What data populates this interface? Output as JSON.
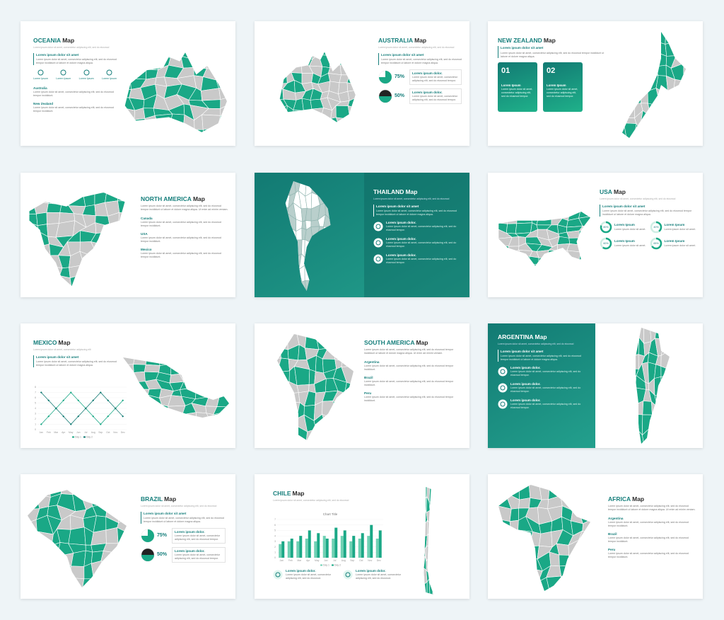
{
  "slides": [
    {
      "title": "OCEANIA",
      "suffix": "Map",
      "subtitle": "Lorem ipsum dolor sit amet, consectetur adipiscing elit, sed do eiusmod",
      "heading": "Lorem ipsum dolor sit amet",
      "body": "Lorem ipsum dolor sit amet, consectetur adipiscing elit, sed do eiusmod tempor incididunt ut labore et dolore magna aliqua.",
      "icons": [
        "Lorem Ipsum",
        "Lorem Ipsum",
        "Lorem Ipsum",
        "Lorem Ipsum"
      ],
      "items": [
        {
          "label": "Australia",
          "text": "Lorem ipsum dolor sit amet, consectetur adipiscing elit, sed do eiusmod tempor incididunt."
        },
        {
          "label": "New Zealand",
          "text": "Lorem ipsum dolor sit amet, consectetur adipiscing elit, sed do eiusmod tempor incididunt."
        }
      ]
    },
    {
      "title": "AUSTRALIA",
      "suffix": "Map",
      "subtitle": "Lorem ipsum dolor sit amet, consectetur adipiscing elit, sed do eiusmod",
      "heading": "Lorem ipsum dolor sit amet",
      "body": "Lorem ipsum dolor sit amet, consectetur adipiscing elit, sed do eiusmod tempor incididunt ut labore et dolore magna aliqua.",
      "pies": {
        "values": [
          75,
          50
        ],
        "value_labels": [
          "75%",
          "50%"
        ],
        "titles": [
          "Lorem ipsum dolor.",
          "Lorem ipsum dolor."
        ],
        "texts": [
          "Lorem ipsum dolor sit amet, consectetur adipiscing elit, sed do eiusmod tempor.",
          "Lorem ipsum dolor sit amet, consectetur adipiscing elit, sed do eiusmod tempor."
        ]
      }
    },
    {
      "title": "NEW ZEALAND",
      "suffix": "Map",
      "heading": "Lorem ipsum dolor sit amet",
      "body": "Lorem ipsum dolor sit amet, consectetur adipiscing elit, sed do eiusmod tempor incididunt ut labore et dolore magna aliqua.",
      "boxes": [
        {
          "num": "01",
          "title": "Lorem Ipsum",
          "text": "Lorem ipsum dolor sit amet, consectetur adipiscing elit, sed do eiusmod tempor."
        },
        {
          "num": "02",
          "title": "Lorem Ipsum",
          "text": "Lorem ipsum dolor sit amet, consectetur adipiscing elit, sed do eiusmod tempor."
        }
      ]
    },
    {
      "title": "NORTH AMERICA",
      "suffix": "Map",
      "body": "Lorem ipsum dolor sit amet, consectetur adipiscing elit, sed do eiusmod tempor incididunt ut labore et dolore magna aliqua. Ut enim ad minim veniam.",
      "items": [
        {
          "label": "Canada",
          "text": "Lorem ipsum dolor sit amet, consectetur adipiscing elit, sed do eiusmod tempor incididunt."
        },
        {
          "label": "USA",
          "text": "Lorem ipsum dolor sit amet, consectetur adipiscing elit, sed do eiusmod tempor incididunt."
        },
        {
          "label": "Mexico",
          "text": "Lorem ipsum dolor sit amet, consectetur adipiscing elit, sed do eiusmod tempor incididunt."
        }
      ]
    },
    {
      "title": "THAILAND",
      "suffix": "Map",
      "subtitle": "Lorem ipsum dolor sit amet, consectetur adipiscing elit, sed do eiusmod",
      "heading": "Lorem ipsum dolor sit amet",
      "body": "Lorem ipsum dolor sit amet, consectetur adipiscing elit, sed do eiusmod tempor incididunt ut labore et dolore magna aliqua.",
      "features": [
        {
          "title": "Lorem ipsum dolor.",
          "text": "Lorem ipsum dolor sit amet, consectetur adipiscing elit, sed do eiusmod tempor."
        },
        {
          "title": "Lorem ipsum dolor.",
          "text": "Lorem ipsum dolor sit amet, consectetur adipiscing elit, sed do eiusmod tempor."
        },
        {
          "title": "Lorem ipsum dolor.",
          "text": "Lorem ipsum dolor sit amet, consectetur adipiscing elit, sed do eiusmod tempor."
        }
      ]
    },
    {
      "title": "USA",
      "suffix": "Map",
      "subtitle": "Lorem ipsum dolor sit amet, consectetur adipiscing elit, sed do eiusmod",
      "heading": "Lorem ipsum dolor sit amet",
      "body": "Lorem ipsum dolor sit amet, consectetur adipiscing elit, sed do eiusmod tempor incididunt ut labore et dolore magna aliqua.",
      "donuts": {
        "values": [
          80,
          40,
          60,
          65
        ],
        "value_labels": [
          "80%",
          "40%",
          "60%",
          "65%"
        ],
        "titles": [
          "Lorem Ipsum",
          "Lorem Ipsum",
          "Lorem Ipsum",
          "Lorem Ipsum"
        ],
        "texts": [
          "Lorem ipsum dolor sit amet.",
          "Lorem ipsum dolor sit amet.",
          "Lorem ipsum dolor sit amet.",
          "Lorem ipsum dolor sit amet."
        ]
      }
    },
    {
      "title": "MEXICO",
      "suffix": "Map",
      "subtitle": "Lorem ipsum dolor sit amet, consectetur adipiscing elit",
      "heading": "Lorem ipsum dolor sit amet",
      "body": "Lorem ipsum dolor sit amet, consectetur adipiscing elit, sed do eiusmod tempor incididunt ut labore et dolore magna aliqua.",
      "chart": {
        "type": "line",
        "categories": [
          "Jan",
          "Feb",
          "Mar",
          "Apr",
          "May",
          "Jun",
          "Jul",
          "Aug",
          "Sep",
          "Oct",
          "Nov",
          "Dec"
        ],
        "series": [
          {
            "name": "Day 1",
            "color": "#1aa886",
            "values": [
              1,
              2.5,
              4,
              5.5,
              7,
              5.5,
              4,
              2.5,
              1,
              2.5,
              4,
              5.5
            ]
          },
          {
            "name": "Day 2",
            "color": "#127a73",
            "values": [
              7,
              5.5,
              4,
              2.5,
              1,
              2.5,
              4,
              5.5,
              7,
              5.5,
              4,
              2.5
            ]
          }
        ],
        "ylim": [
          0,
          8
        ],
        "yticks": [
          0,
          1,
          2,
          3,
          4,
          5,
          6,
          7,
          8
        ]
      }
    },
    {
      "title": "SOUTH AMERICA",
      "suffix": "Map",
      "body": "Lorem ipsum dolor sit amet, consectetur adipiscing elit, sed do eiusmod tempor incididunt ut labore et dolore magna aliqua. Ut enim ad minim veniam.",
      "items": [
        {
          "label": "Argentina",
          "text": "Lorem ipsum dolor sit amet, consectetur adipiscing elit, sed do eiusmod tempor incididunt."
        },
        {
          "label": "Brazil",
          "text": "Lorem ipsum dolor sit amet, consectetur adipiscing elit, sed do eiusmod tempor incididunt."
        },
        {
          "label": "Peru",
          "text": "Lorem ipsum dolor sit amet, consectetur adipiscing elit, sed do eiusmod tempor incididunt."
        }
      ]
    },
    {
      "title": "ARGENTINA",
      "suffix": "Map",
      "subtitle": "Lorem ipsum dolor sit amet, consectetur adipiscing elit, sed do eiusmod",
      "heading": "Lorem ipsum dolor sit amet",
      "body": "Lorem ipsum dolor sit amet, consectetur adipiscing elit, sed do eiusmod tempor incididunt ut labore et dolore magna aliqua.",
      "features": [
        {
          "title": "Lorem ipsum dolor.",
          "text": "Lorem ipsum dolor sit amet, consectetur adipiscing elit, sed do eiusmod tempor."
        },
        {
          "title": "Lorem ipsum dolor.",
          "text": "Lorem ipsum dolor sit amet, consectetur adipiscing elit, sed do eiusmod tempor."
        },
        {
          "title": "Lorem ipsum dolor.",
          "text": "Lorem ipsum dolor sit amet, consectetur adipiscing elit, sed do eiusmod tempor."
        }
      ]
    },
    {
      "title": "BRAZIL",
      "suffix": "Map",
      "subtitle": "Lorem ipsum dolor sit amet, consectetur adipiscing elit, sed do eiusmod",
      "heading": "Lorem ipsum dolor sit amet",
      "body": "Lorem ipsum dolor sit amet, consectetur adipiscing elit, sed do eiusmod tempor incididunt ut labore et dolore magna aliqua.",
      "pies": {
        "values": [
          75,
          50
        ],
        "value_labels": [
          "75%",
          "50%"
        ],
        "titles": [
          "Lorem ipsum dolor.",
          "Lorem ipsum dolor."
        ],
        "texts": [
          "Lorem ipsum dolor sit amet, consectetur adipiscing elit, sed do eiusmod tempor.",
          "Lorem ipsum dolor sit amet, consectetur adipiscing elit, sed do eiusmod tempor."
        ]
      }
    },
    {
      "title": "CHILE",
      "suffix": "Map",
      "subtitle": "Lorem ipsum dolor sit amet, consectetur adipiscing elit, sed do eiusmod",
      "chart": {
        "type": "bar",
        "title": "Chart Title",
        "categories": [
          "Jan",
          "Feb",
          "Mar",
          "Apr",
          "May",
          "Jun",
          "Jul",
          "Aug",
          "Sep",
          "Oct",
          "Nov",
          "Dec"
        ],
        "series": [
          {
            "name": "Day 1",
            "color": "#6fd1b4",
            "values": [
              2.5,
              3,
              3,
              3.5,
              3,
              4,
              3.5,
              4,
              3,
              3.5,
              4,
              3.5
            ]
          },
          {
            "name": "Day 2",
            "color": "#1aa886",
            "values": [
              3,
              3.5,
              4,
              5,
              4.5,
              3.5,
              5.5,
              5,
              4,
              4.5,
              6,
              5
            ]
          }
        ],
        "ylim": [
          0,
          7
        ],
        "yticks": [
          0,
          1,
          2,
          3,
          4,
          5,
          6,
          7
        ]
      },
      "features": [
        {
          "title": "Lorem ipsum dolor.",
          "text": "Lorem ipsum dolor sit amet, consectetur adipiscing elit, sed do eiusmod."
        },
        {
          "title": "Lorem ipsum dolor.",
          "text": "Lorem ipsum dolor sit amet, consectetur adipiscing elit, sed do eiusmod."
        }
      ]
    },
    {
      "title": "AFRICA",
      "suffix": "Map",
      "body": "Lorem ipsum dolor sit amet, consectetur adipiscing elit, sed do eiusmod tempor incididunt ut labore et dolore magna aliqua. Ut enim ad minim veniam.",
      "items": [
        {
          "label": "Argentina",
          "text": "Lorem ipsum dolor sit amet, consectetur adipiscing elit, sed do eiusmod tempor incididunt."
        },
        {
          "label": "Brazil",
          "text": "Lorem ipsum dolor sit amet, consectetur adipiscing elit, sed do eiusmod tempor incididunt."
        },
        {
          "label": "Peru",
          "text": "Lorem ipsum dolor sit amet, consectetur adipiscing elit, sed do eiusmod tempor incididunt."
        }
      ]
    }
  ]
}
